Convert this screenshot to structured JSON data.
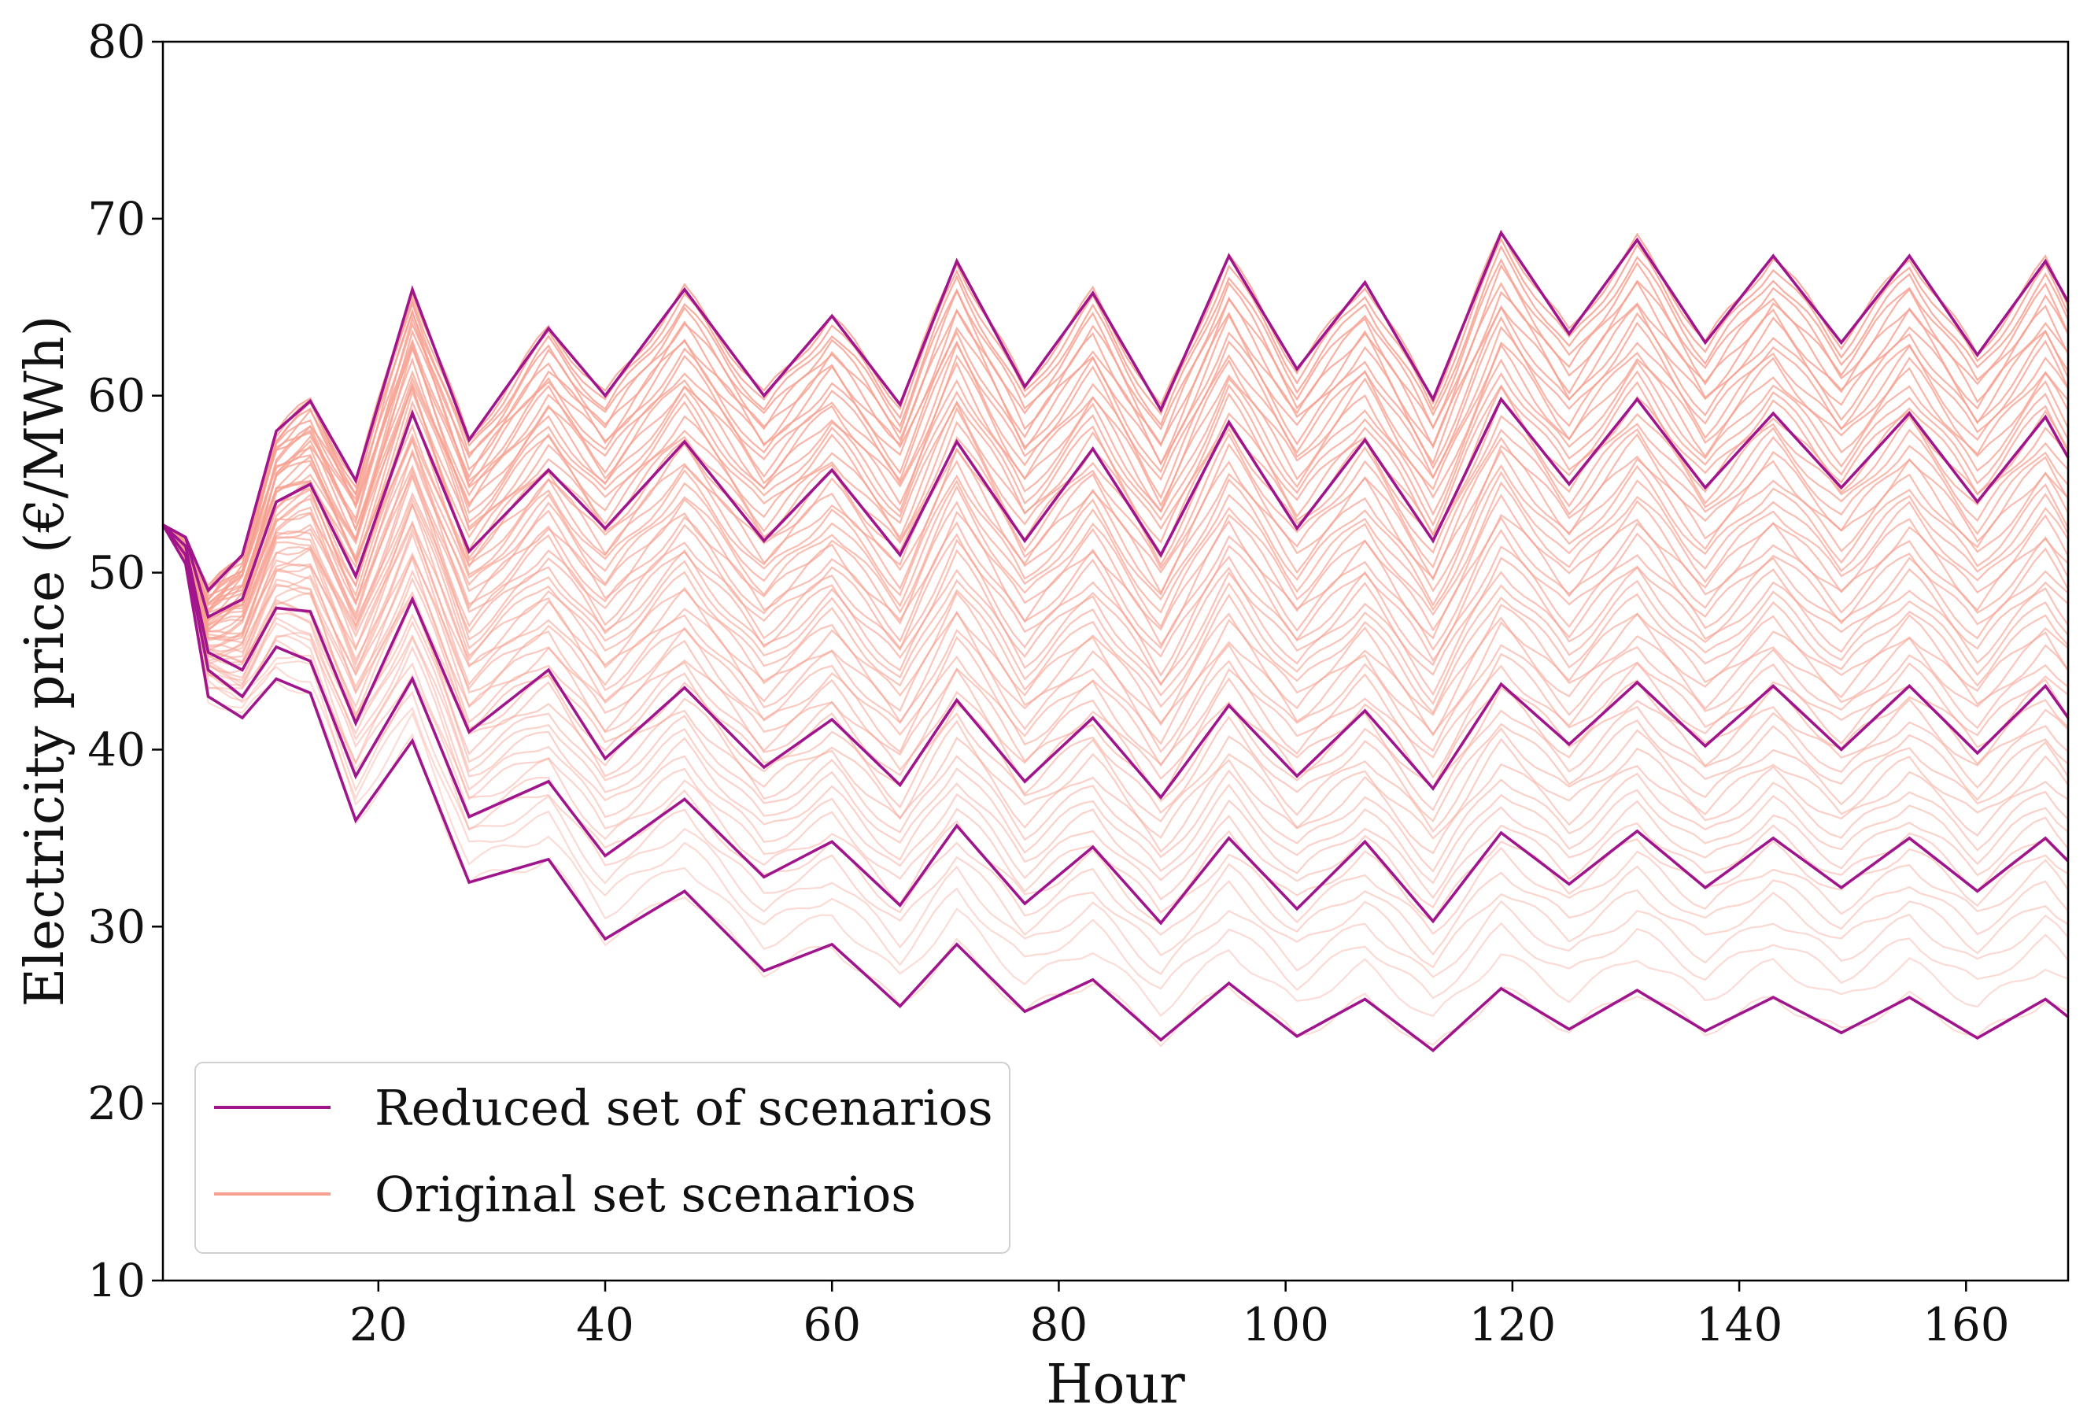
{
  "chart_data": {
    "type": "line",
    "title": "",
    "xlabel": "Hour",
    "ylabel": "Electricity price (€/MWh)",
    "xlim": [
      1,
      169
    ],
    "ylim": [
      10,
      80
    ],
    "x_ticks": [
      20,
      40,
      60,
      80,
      100,
      120,
      140,
      160
    ],
    "x_tick_labels": [
      "20",
      "40",
      "60",
      "80",
      "100",
      "120",
      "140",
      "160"
    ],
    "y_ticks": [
      10,
      20,
      30,
      40,
      50,
      60,
      70,
      80
    ],
    "y_tick_labels": [
      "10",
      "20",
      "30",
      "40",
      "50",
      "60",
      "70",
      "80"
    ],
    "grid": false,
    "legend": {
      "position": "bottom-left",
      "entries": [
        {
          "label": "Reduced set of scenarios",
          "color": "#a0148c"
        },
        {
          "label": "Original set scenarios",
          "color": "#f6a090"
        }
      ]
    },
    "series_generation": {
      "start_value": 52.7,
      "hour_start": 1,
      "hour_end": 169,
      "daily_period_hours": 12,
      "original_scenario_count": 60,
      "original_end_level_range": [
        27,
        60
      ]
    },
    "series": [
      {
        "name": "Reduced set of scenarios",
        "color": "#a0148c",
        "x": [
          1,
          3,
          5,
          8,
          11,
          14,
          18,
          23,
          28,
          35,
          40,
          47,
          54,
          60,
          66,
          71,
          77,
          83,
          89,
          95,
          101,
          107,
          113,
          119,
          125,
          131,
          137,
          143,
          149,
          155,
          161,
          167,
          169
        ],
        "values": [
          52.7,
          52,
          49,
          51,
          58,
          59.7,
          55.2,
          66,
          57.5,
          63.8,
          60,
          66,
          60,
          64.5,
          59.5,
          67.6,
          60.5,
          65.8,
          59.2,
          67.9,
          61.5,
          66.4,
          59.8,
          69.2,
          63.5,
          68.8,
          63,
          67.9,
          63,
          67.9,
          62.3,
          67.6,
          65.3
        ]
      },
      {
        "name": "Reduced set of scenarios",
        "color": "#a0148c",
        "x": [
          1,
          3,
          5,
          8,
          11,
          14,
          18,
          23,
          28,
          35,
          40,
          47,
          54,
          60,
          66,
          71,
          77,
          83,
          89,
          95,
          101,
          107,
          113,
          119,
          125,
          131,
          137,
          143,
          149,
          155,
          161,
          167,
          169
        ],
        "values": [
          52.7,
          52,
          47.5,
          48.5,
          54,
          55,
          49.8,
          59,
          51.2,
          55.8,
          52.5,
          57.4,
          51.8,
          55.8,
          51,
          57.4,
          51.8,
          57,
          51,
          58.5,
          52.5,
          57.5,
          51.8,
          59.8,
          55,
          59.8,
          54.8,
          59,
          54.8,
          59,
          54,
          58.8,
          56.5
        ]
      },
      {
        "name": "Reduced set of scenarios",
        "color": "#a0148c",
        "x": [
          1,
          3,
          5,
          8,
          11,
          14,
          18,
          23,
          28,
          35,
          40,
          47,
          54,
          60,
          66,
          71,
          77,
          83,
          89,
          95,
          101,
          107,
          113,
          119,
          125,
          131,
          137,
          143,
          149,
          155,
          161,
          167,
          169
        ],
        "values": [
          52.7,
          51.5,
          45.5,
          44.5,
          48,
          47.8,
          41.5,
          48.5,
          41,
          44.5,
          39.5,
          43.5,
          39,
          41.7,
          38,
          42.8,
          38.2,
          41.8,
          37.3,
          42.5,
          38.5,
          42.2,
          37.8,
          43.7,
          40.3,
          43.8,
          40.2,
          43.6,
          40,
          43.6,
          39.8,
          43.6,
          41.8
        ]
      },
      {
        "name": "Reduced set of scenarios",
        "color": "#a0148c",
        "x": [
          1,
          3,
          5,
          8,
          11,
          14,
          18,
          23,
          28,
          35,
          40,
          47,
          54,
          60,
          66,
          71,
          77,
          83,
          89,
          95,
          101,
          107,
          113,
          119,
          125,
          131,
          137,
          143,
          149,
          155,
          161,
          167,
          169
        ],
        "values": [
          52.7,
          51,
          44.5,
          43,
          45.8,
          45,
          38.5,
          44,
          36.2,
          38.2,
          34,
          37.2,
          32.8,
          34.8,
          31.2,
          35.7,
          31.3,
          34.5,
          30.2,
          35,
          31,
          34.8,
          30.3,
          35.3,
          32.4,
          35.4,
          32.2,
          35,
          32.2,
          35,
          32,
          35,
          33.7
        ]
      },
      {
        "name": "Reduced set of scenarios",
        "color": "#a0148c",
        "x": [
          1,
          3,
          5,
          8,
          11,
          14,
          18,
          23,
          28,
          35,
          40,
          47,
          54,
          60,
          66,
          71,
          77,
          83,
          89,
          95,
          101,
          107,
          113,
          119,
          125,
          131,
          137,
          143,
          149,
          155,
          161,
          167,
          169
        ],
        "values": [
          52.7,
          50.5,
          43,
          41.8,
          44,
          43.2,
          36,
          40.5,
          32.5,
          33.8,
          29.3,
          32,
          27.5,
          29,
          25.5,
          29,
          25.2,
          27,
          23.6,
          26.8,
          23.8,
          25.9,
          23,
          26.5,
          24.2,
          26.4,
          24.1,
          26,
          24,
          26,
          23.7,
          25.9,
          24.9
        ]
      }
    ]
  }
}
